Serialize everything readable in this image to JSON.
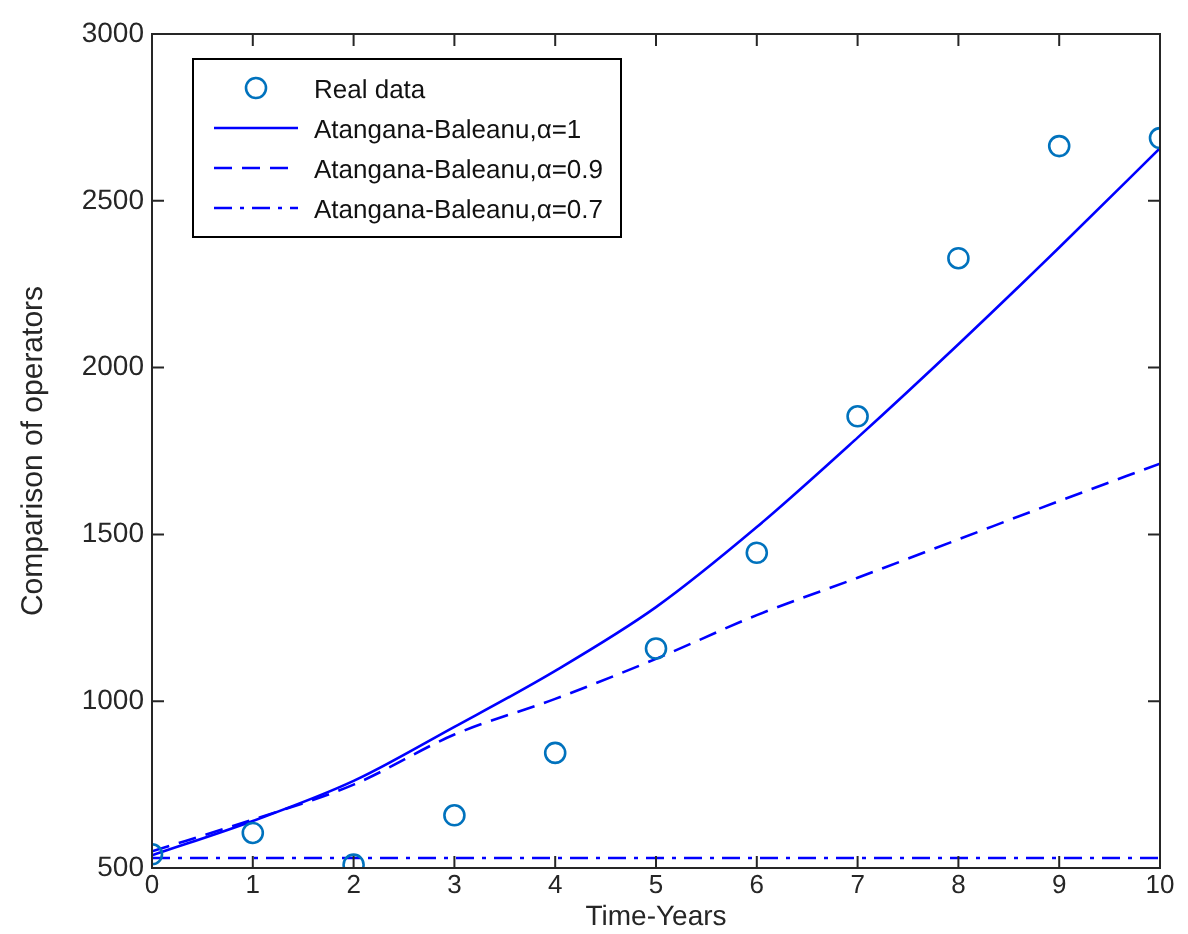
{
  "chart_data": {
    "type": "line",
    "xlabel": "Time-Years",
    "ylabel": "Comparison of operators",
    "x": [
      0,
      1,
      2,
      3,
      4,
      5,
      6,
      7,
      8,
      9,
      10
    ],
    "series": [
      {
        "name": "Real data",
        "type": "scatter",
        "color": "#0072bd",
        "marker": "circle",
        "values": [
          541,
          605,
          510,
          658,
          845,
          1158,
          1445,
          1854,
          2328,
          2664,
          2688
        ]
      },
      {
        "name": "Atangana-Baleanu,α=1",
        "color": "#0000ff",
        "marker": "none",
        "line_style": "solid",
        "values": [
          538,
          641,
          761,
          923,
          1091,
          1282,
          1522,
          1790,
          2070,
          2360,
          2658
        ]
      },
      {
        "name": "Atangana-Baleanu,α=0.9",
        "color": "#0000ff",
        "marker": "none",
        "line_style": "dashed",
        "values": [
          550,
          645,
          750,
          900,
          1007,
          1127,
          1258,
          1370,
          1485,
          1600,
          1712
        ]
      },
      {
        "name": "Atangana-Baleanu,α=0.7",
        "color": "#0000ff",
        "marker": "none",
        "line_style": "dashdot",
        "values": [
          530,
          530,
          530,
          530,
          530,
          530,
          530,
          530,
          530,
          530,
          530
        ]
      }
    ],
    "xlim": [
      0,
      10
    ],
    "xticks": [
      0,
      1,
      2,
      3,
      4,
      5,
      6,
      7,
      8,
      9,
      10
    ],
    "ylim": [
      500,
      3000
    ],
    "yticks": [
      500,
      1000,
      1500,
      2000,
      2500,
      3000
    ],
    "grid": false,
    "legend": "top left"
  }
}
